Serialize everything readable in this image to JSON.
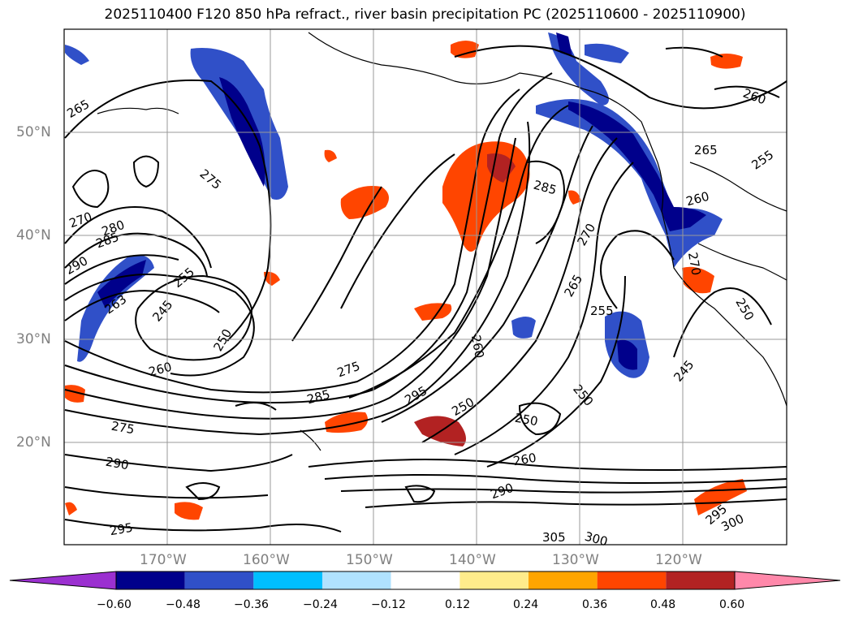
{
  "title": "2025110400 F120 850 hPa refract., river basin precipitation PC (2025110600 - 2025110900)",
  "lat_labels": [
    "50°N",
    "40°N",
    "30°N",
    "20°N"
  ],
  "lon_labels": [
    "170°W",
    "160°W",
    "150°W",
    "140°W",
    "130°W",
    "120°W"
  ],
  "contour_labels": [
    "265",
    "275",
    "270",
    "280",
    "285",
    "290",
    "255",
    "245",
    "263",
    "250",
    "260",
    "275",
    "285",
    "295",
    "290",
    "275",
    "295",
    "305",
    "300",
    "300",
    "295",
    "290",
    "260",
    "250",
    "250",
    "255",
    "245",
    "250",
    "260",
    "265",
    "270",
    "285",
    "260",
    "265",
    "260",
    "255",
    "270",
    "250",
    "285",
    "260"
  ],
  "colorbar": {
    "ticks": [
      "−0.60",
      "−0.48",
      "−0.36",
      "−0.24",
      "−0.12",
      "0.12",
      "0.24",
      "0.36",
      "0.48",
      "0.60"
    ],
    "colors": [
      "#9b30d0",
      "#00008b",
      "#3050c8",
      "#00bfff",
      "#b0e2ff",
      "#ffffff",
      "#ffec8b",
      "#ffa500",
      "#ff4500",
      "#b22222",
      "#ff88aa"
    ]
  }
}
